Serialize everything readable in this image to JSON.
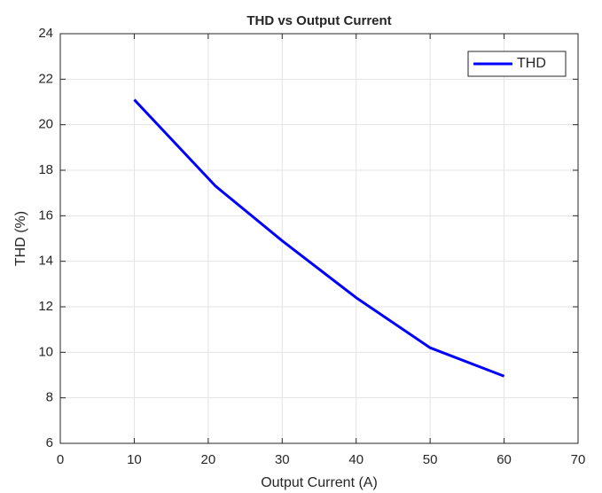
{
  "chart_data": {
    "type": "line",
    "title": "THD vs Output Current",
    "x_label": "Output Current (A)",
    "y_label": "THD (%)",
    "x": [
      10,
      21,
      30,
      40,
      50,
      60
    ],
    "series": [
      {
        "name": "THD",
        "color": "#0000ff",
        "values": [
          21.1,
          17.3,
          14.9,
          12.4,
          10.2,
          8.95
        ]
      }
    ],
    "xlim": [
      0,
      70
    ],
    "xticks": [
      0,
      10,
      20,
      30,
      40,
      50,
      60,
      70
    ],
    "ylim": [
      6,
      24
    ],
    "yticks": [
      6,
      8,
      10,
      12,
      14,
      16,
      18,
      20,
      22,
      24
    ],
    "grid": true,
    "legend": "upper right"
  }
}
